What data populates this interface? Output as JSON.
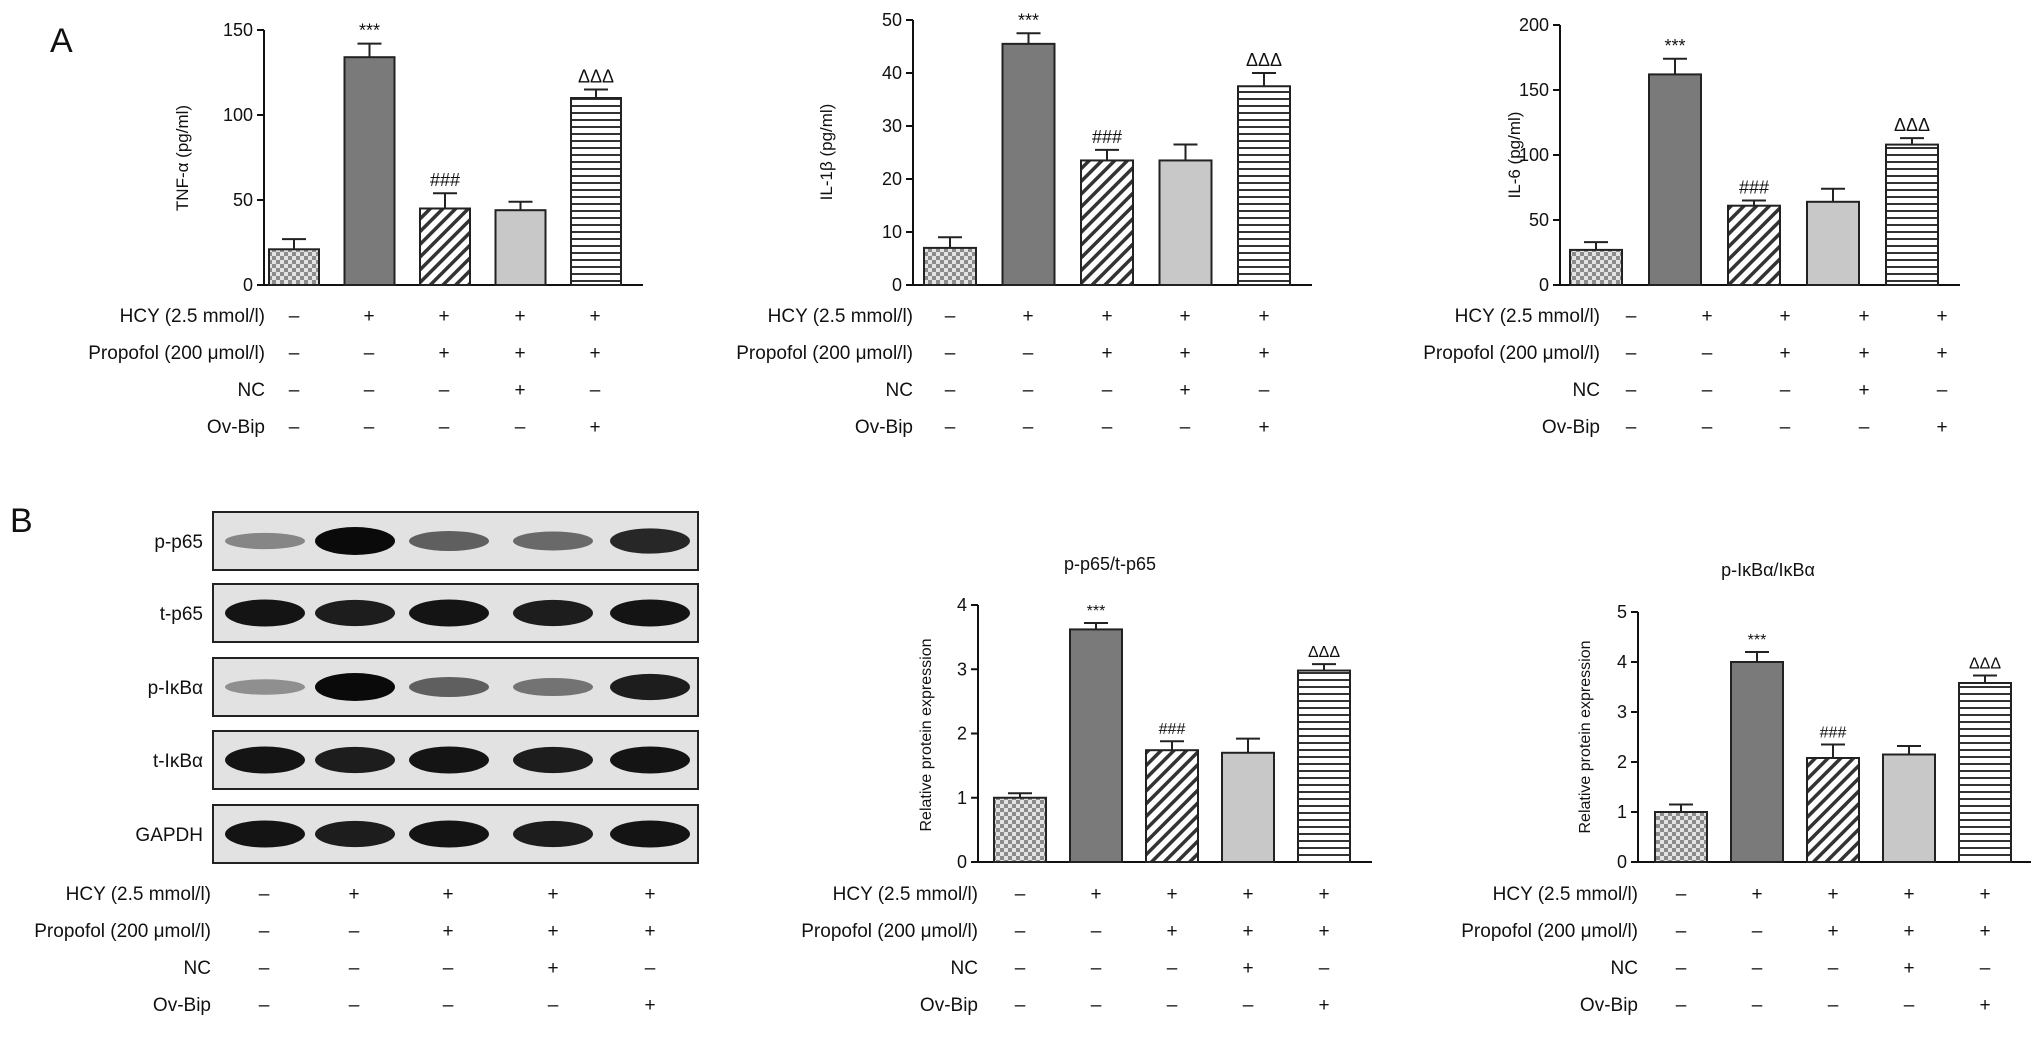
{
  "panels": {
    "a": "A",
    "b": "B"
  },
  "conditions": {
    "rows": [
      "HCY (2.5 mmol/l)",
      "Propofol (200 μmol/l)",
      "NC",
      "Ov-Bip"
    ],
    "signs": [
      [
        "–",
        "+",
        "+",
        "+",
        "+"
      ],
      [
        "–",
        "–",
        "+",
        "+",
        "+"
      ],
      [
        "–",
        "–",
        "–",
        "+",
        "–"
      ],
      [
        "–",
        "–",
        "–",
        "–",
        "+"
      ]
    ]
  },
  "western_blot": {
    "labels": [
      "p-p65",
      "t-p65",
      "p-IκBα",
      "t-IκBα",
      "GAPDH"
    ],
    "intensities": [
      [
        0.35,
        1.0,
        0.55,
        0.5,
        0.85
      ],
      [
        0.95,
        0.9,
        0.95,
        0.9,
        0.95
      ],
      [
        0.3,
        1.0,
        0.55,
        0.45,
        0.9
      ],
      [
        0.95,
        0.9,
        0.95,
        0.9,
        0.95
      ],
      [
        0.95,
        0.9,
        0.95,
        0.9,
        0.95
      ]
    ]
  },
  "colors": {
    "bar_dark": "#7a7a7a",
    "bar_light": "#c8c8c8",
    "axis": "#111111"
  },
  "chart_data": [
    {
      "type": "bar",
      "title": "",
      "ylabel": "TNF-α (pg/ml)",
      "ylim": [
        0,
        150
      ],
      "yticks": [
        "0",
        "50",
        "100",
        "150"
      ],
      "values": [
        21,
        134,
        45,
        44,
        110
      ],
      "errors": [
        6,
        8,
        9,
        5,
        5
      ],
      "annotations": [
        "",
        "***",
        "###",
        "",
        "ΔΔΔ"
      ]
    },
    {
      "type": "bar",
      "title": "",
      "ylabel": "IL-1β (pg/ml)",
      "ylim": [
        0,
        50
      ],
      "yticks": [
        "0",
        "10",
        "20",
        "30",
        "40",
        "50"
      ],
      "values": [
        7,
        45.5,
        23.5,
        23.5,
        37.5
      ],
      "errors": [
        2,
        2,
        2,
        3,
        2.5
      ],
      "annotations": [
        "",
        "***",
        "###",
        "",
        "ΔΔΔ"
      ]
    },
    {
      "type": "bar",
      "title": "",
      "ylabel": "IL-6 (pg/ml)",
      "ylim": [
        0,
        200
      ],
      "yticks": [
        "0",
        "50",
        "100",
        "150",
        "200"
      ],
      "values": [
        27,
        162,
        61,
        64,
        108
      ],
      "errors": [
        6,
        12,
        4,
        10,
        5
      ],
      "annotations": [
        "",
        "***",
        "###",
        "",
        "ΔΔΔ"
      ]
    },
    {
      "type": "bar",
      "title": "p-p65/t-p65",
      "ylabel": "Relative protein expression",
      "ylim": [
        0,
        4
      ],
      "yticks": [
        "0",
        "1",
        "2",
        "3",
        "4"
      ],
      "values": [
        1.0,
        3.62,
        1.74,
        1.7,
        2.98
      ],
      "errors": [
        0.07,
        0.1,
        0.14,
        0.22,
        0.1
      ],
      "annotations": [
        "",
        "***",
        "###",
        "",
        "ΔΔΔ"
      ]
    },
    {
      "type": "bar",
      "title": "p-IκBα/IκBα",
      "ylabel": "Relative protein expression",
      "ylim": [
        0,
        5
      ],
      "yticks": [
        "0",
        "1",
        "2",
        "3",
        "4",
        "5"
      ],
      "values": [
        1.0,
        4.0,
        2.08,
        2.15,
        3.58
      ],
      "errors": [
        0.15,
        0.2,
        0.27,
        0.17,
        0.15
      ],
      "annotations": [
        "",
        "***",
        "###",
        "",
        "ΔΔΔ"
      ]
    }
  ]
}
